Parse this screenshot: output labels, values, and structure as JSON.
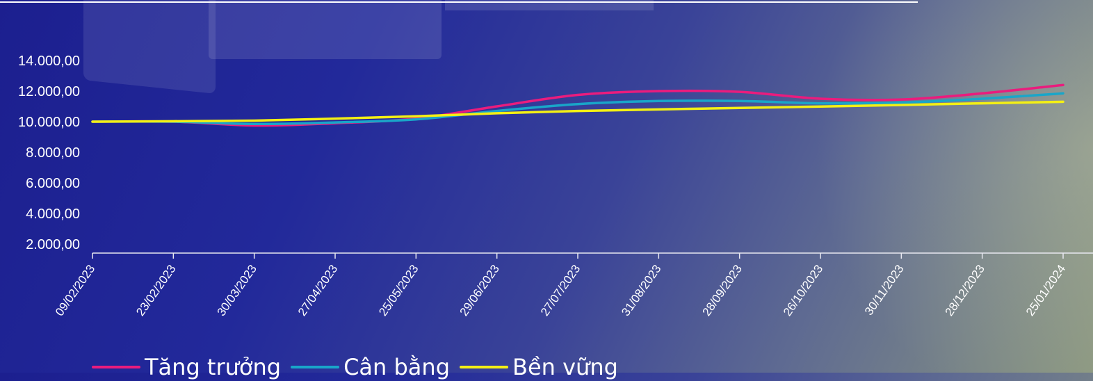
{
  "chart_data": {
    "type": "line",
    "title": "",
    "xlabel": "",
    "ylabel": "",
    "ylim": [
      2000,
      14000
    ],
    "yticks": [
      "14.000,00",
      "12.000,00",
      "10.000,00",
      "8.000,00",
      "6.000,00",
      "4.000,00",
      "2.000,00"
    ],
    "ytick_values": [
      14000,
      12000,
      10000,
      8000,
      6000,
      4000,
      2000
    ],
    "categories": [
      "09/02/2023",
      "23/02/2023",
      "30/03/2023",
      "27/04/2023",
      "25/05/2023",
      "29/06/2023",
      "27/07/2023",
      "31/08/2023",
      "28/09/2023",
      "26/10/2023",
      "30/11/2023",
      "28/12/2023",
      "25/01/2024"
    ],
    "grid": false,
    "legend_position": "bottom-left",
    "series": [
      {
        "name": "Tăng trưởng",
        "color": "#ea1c7d",
        "values": [
          10000,
          10000,
          9750,
          9900,
          10200,
          11000,
          11750,
          12000,
          11950,
          11500,
          11450,
          11850,
          12400
        ]
      },
      {
        "name": "Cân bằng",
        "color": "#19a6c9",
        "values": [
          10000,
          10000,
          9850,
          9950,
          10150,
          10700,
          11150,
          11350,
          11350,
          11200,
          11250,
          11500,
          11850
        ]
      },
      {
        "name": "Bền vững",
        "color": "#f4f014",
        "values": [
          10000,
          10030,
          10070,
          10200,
          10350,
          10550,
          10700,
          10800,
          10900,
          10990,
          11090,
          11200,
          11300
        ]
      }
    ]
  }
}
